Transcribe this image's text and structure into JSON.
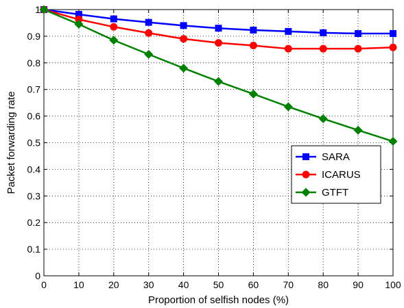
{
  "chart_data": {
    "type": "line",
    "title": "",
    "xlabel": "Proportion of selfish nodes (%)",
    "ylabel": "Packet forwarding rate",
    "xlim": [
      0,
      100
    ],
    "ylim": [
      0,
      1
    ],
    "x_ticks": [
      0,
      10,
      20,
      30,
      40,
      50,
      60,
      70,
      80,
      90,
      100
    ],
    "x_tick_labels": [
      "0",
      "10",
      "20",
      "30",
      "40",
      "50",
      "60",
      "70",
      "80",
      "90",
      "100"
    ],
    "y_ticks": [
      0,
      0.1,
      0.2,
      0.3,
      0.4,
      0.5,
      0.6,
      0.7,
      0.8,
      0.9,
      1
    ],
    "y_tick_labels": [
      "0",
      "0.1",
      "0.2",
      "0.3",
      "0.4",
      "0.5",
      "0.6",
      "0.7",
      "0.8",
      "0.9",
      "1"
    ],
    "grid": true,
    "legend_position": "right",
    "x": [
      0,
      10,
      20,
      30,
      40,
      50,
      60,
      70,
      80,
      90,
      100
    ],
    "series": [
      {
        "name": "SARA",
        "color": "#0000ff",
        "marker": "square",
        "values": [
          1.0,
          0.982,
          0.965,
          0.952,
          0.94,
          0.93,
          0.923,
          0.918,
          0.913,
          0.91,
          0.91
        ]
      },
      {
        "name": "ICARUS",
        "color": "#ff0000",
        "marker": "circle",
        "values": [
          1.0,
          0.963,
          0.935,
          0.912,
          0.89,
          0.875,
          0.865,
          0.853,
          0.853,
          0.853,
          0.858
        ]
      },
      {
        "name": "GTFT",
        "color": "#008000",
        "marker": "diamond",
        "values": [
          1.0,
          0.945,
          0.885,
          0.832,
          0.78,
          0.73,
          0.683,
          0.635,
          0.59,
          0.547,
          0.505
        ]
      }
    ]
  }
}
